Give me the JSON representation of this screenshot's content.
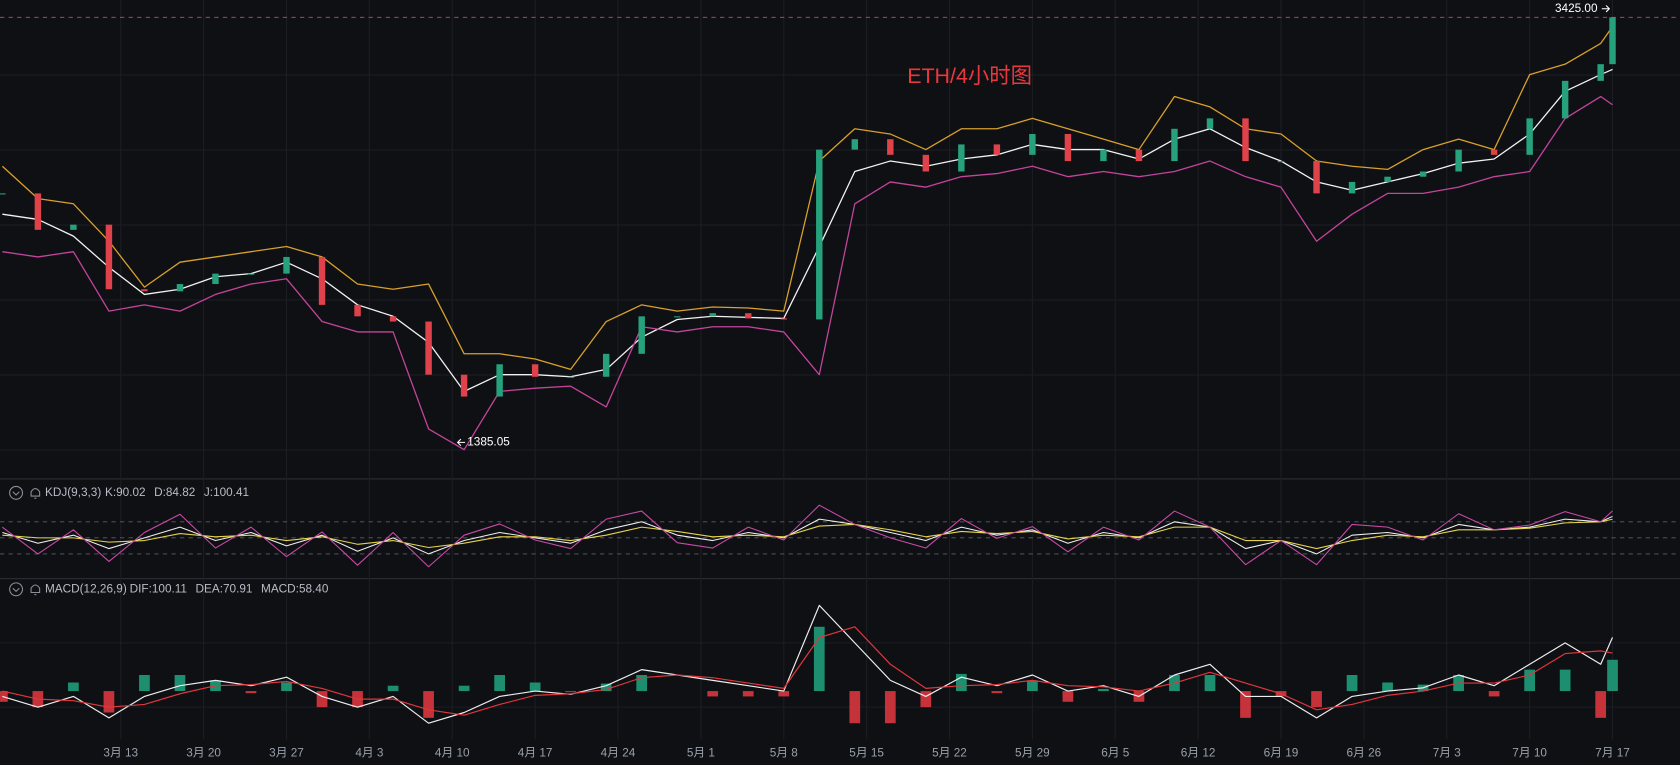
{
  "chart_data": [
    {
      "type": "candlestick",
      "title": "ETH/4小时图",
      "x": [
        0,
        3,
        6,
        9,
        12,
        15,
        18,
        21,
        24,
        27,
        30,
        33,
        36,
        39,
        42,
        45,
        48,
        51,
        54,
        57,
        60,
        63,
        66,
        69,
        72,
        75,
        78,
        81,
        84,
        87,
        90,
        93,
        96,
        99,
        102,
        105,
        108,
        111,
        114,
        117,
        120,
        123,
        126,
        129,
        132,
        135,
        136
      ],
      "xlim": [
        -0.2,
        141.7
      ],
      "xticks": [
        {
          "value": 10,
          "label": "3月 13"
        },
        {
          "value": 17,
          "label": "3月 20"
        },
        {
          "value": 24,
          "label": "3月 27"
        },
        {
          "value": 31,
          "label": "4月 3"
        },
        {
          "value": 38,
          "label": "4月 10"
        },
        {
          "value": 45,
          "label": "4月 17"
        },
        {
          "value": 52,
          "label": "4月 24"
        },
        {
          "value": 59,
          "label": "5月 1"
        },
        {
          "value": 66,
          "label": "5月 8"
        },
        {
          "value": 73,
          "label": "5月 15"
        },
        {
          "value": 80,
          "label": "5月 22"
        },
        {
          "value": 87,
          "label": "5月 29"
        },
        {
          "value": 94,
          "label": "6月 5"
        },
        {
          "value": 101,
          "label": "6月 12"
        },
        {
          "value": 108,
          "label": "6月 19"
        },
        {
          "value": 115,
          "label": "6月 26"
        },
        {
          "value": 122,
          "label": "7月 3"
        },
        {
          "value": 129,
          "label": "7月 10"
        },
        {
          "value": 136,
          "label": "7月 17"
        }
      ],
      "ylim": [
        1220,
        3508
      ],
      "up_color": "#26a17b",
      "down_color": "#e0424b",
      "values": [
        2580,
        2405,
        2430,
        2120,
        2110,
        2145,
        2195,
        2195,
        2275,
        2045,
        1990,
        1965,
        1710,
        1605,
        1760,
        1700,
        1700,
        1810,
        1990,
        1990,
        2005,
        1980,
        1975,
        2790,
        2840,
        2765,
        2685,
        2815,
        2765,
        2865,
        2735,
        2790,
        2735,
        2890,
        2940,
        2735,
        2735,
        2580,
        2635,
        2660,
        2685,
        2790,
        2765,
        2940,
        3120,
        3200,
        3425
      ],
      "series": [
        {
          "color": "#d9a02b",
          "values": [
            2710,
            2555,
            2530,
            2350,
            2130,
            2250,
            2275,
            2300,
            2325,
            2275,
            2145,
            2120,
            2145,
            1810,
            1810,
            1785,
            1735,
            1965,
            2045,
            2015,
            2035,
            2030,
            2015,
            2735,
            2890,
            2865,
            2790,
            2890,
            2890,
            2940,
            2890,
            2840,
            2790,
            3045,
            2995,
            2890,
            2865,
            2735,
            2710,
            2695,
            2790,
            2840,
            2790,
            3150,
            3200,
            3300,
            3380
          ]
        },
        {
          "color": "#f2f2f2",
          "values": [
            2480,
            2455,
            2375,
            2225,
            2095,
            2120,
            2180,
            2195,
            2250,
            2170,
            2045,
            1990,
            1865,
            1630,
            1710,
            1710,
            1700,
            1735,
            1890,
            1975,
            1990,
            1985,
            1980,
            2325,
            2685,
            2735,
            2710,
            2745,
            2765,
            2815,
            2790,
            2790,
            2745,
            2840,
            2890,
            2800,
            2735,
            2635,
            2595,
            2635,
            2675,
            2725,
            2745,
            2865,
            3070,
            3150,
            3175
          ]
        },
        {
          "color": "#c4449c",
          "values": [
            2300,
            2275,
            2300,
            2015,
            2045,
            2015,
            2095,
            2145,
            2170,
            1965,
            1915,
            1915,
            1450,
            1350,
            1630,
            1645,
            1655,
            1555,
            1940,
            1915,
            1940,
            1940,
            1915,
            1710,
            2530,
            2635,
            2610,
            2660,
            2675,
            2710,
            2660,
            2685,
            2660,
            2685,
            2735,
            2660,
            2610,
            2350,
            2480,
            2580,
            2580,
            2610,
            2660,
            2685,
            2940,
            3045,
            3005
          ]
        }
      ],
      "annotations": [
        {
          "x": 136,
          "value": 3425,
          "label": "3425.00"
        },
        {
          "x": 38,
          "value": 1385.05
        }
      ]
    },
    {
      "type": "line",
      "legend_title": "KDJ(9,3,3)",
      "ylim": [
        -16,
        114
      ],
      "levels": [
        20,
        50,
        80
      ],
      "series": [
        {
          "name": "K:90.02",
          "color": "#eeeeee",
          "values": [
            60,
            40,
            55,
            30,
            50,
            70,
            45,
            60,
            35,
            55,
            25,
            50,
            20,
            45,
            60,
            50,
            40,
            65,
            80,
            55,
            45,
            60,
            50,
            85,
            75,
            60,
            45,
            70,
            55,
            65,
            40,
            60,
            50,
            80,
            70,
            30,
            45,
            20,
            55,
            60,
            50,
            75,
            65,
            70,
            85,
            80,
            90.02
          ]
        },
        {
          "name": "D:84.82",
          "color": "#e6d34a",
          "values": [
            55,
            50,
            50,
            42,
            45,
            58,
            52,
            55,
            45,
            52,
            38,
            45,
            32,
            40,
            52,
            52,
            45,
            55,
            70,
            62,
            52,
            55,
            52,
            72,
            75,
            65,
            52,
            62,
            58,
            62,
            48,
            55,
            52,
            70,
            70,
            45,
            45,
            30,
            45,
            55,
            52,
            65,
            65,
            68,
            78,
            80,
            84.82
          ]
        },
        {
          "name": "J:100.41",
          "color": "#c94aa8",
          "values": [
            70,
            20,
            65,
            6,
            60,
            94,
            31,
            70,
            15,
            61,
            -1,
            60,
            -4,
            55,
            76,
            46,
            30,
            85,
            100,
            41,
            31,
            70,
            46,
            111,
            75,
            50,
            31,
            86,
            49,
            71,
            24,
            70,
            46,
            100,
            70,
            0,
            45,
            0,
            75,
            70,
            46,
            95,
            65,
            74,
            99,
            80,
            100.41
          ]
        }
      ]
    },
    {
      "type": "macd",
      "legend_title": "MACD(12,26,9)",
      "ylim": [
        -120,
        180
      ],
      "series": [
        {
          "name": "DIF:100.11",
          "color": "#eeeeee",
          "values": [
            -10,
            -30,
            -10,
            -50,
            -10,
            10,
            20,
            10,
            26,
            -10,
            -30,
            -10,
            -60,
            -40,
            -10,
            0,
            -6,
            10,
            40,
            30,
            20,
            10,
            0,
            160,
            90,
            20,
            -10,
            26,
            10,
            30,
            0,
            10,
            -10,
            30,
            50,
            -10,
            -10,
            -50,
            -10,
            0,
            6,
            30,
            10,
            50,
            90,
            50,
            100.11
          ]
        },
        {
          "name": "DEA:70.91",
          "color": "#e0363c",
          "values": [
            0,
            -15,
            -18,
            -30,
            -25,
            -5,
            10,
            12,
            18,
            5,
            -15,
            -15,
            -35,
            -45,
            -25,
            -8,
            -5,
            3,
            25,
            30,
            25,
            15,
            5,
            100,
            120,
            50,
            5,
            10,
            12,
            20,
            10,
            8,
            0,
            15,
            35,
            15,
            -5,
            -35,
            -25,
            -8,
            0,
            15,
            15,
            30,
            70,
            75,
            70.91
          ]
        }
      ],
      "histogram": {
        "name": "MACD:58.40",
        "up_color": "#1f9c7a",
        "down_color": "#d9363e",
        "values": [
          -20,
          -30,
          16,
          -40,
          30,
          30,
          20,
          -4,
          16,
          -30,
          -30,
          10,
          -50,
          10,
          30,
          16,
          -2,
          14,
          30,
          0,
          -10,
          -10,
          -10,
          120,
          -60,
          -60,
          -30,
          32,
          -4,
          20,
          -20,
          4,
          -20,
          30,
          30,
          -50,
          -10,
          -30,
          30,
          16,
          12,
          30,
          -10,
          40,
          40,
          -50,
          58.4
        ]
      }
    }
  ]
}
